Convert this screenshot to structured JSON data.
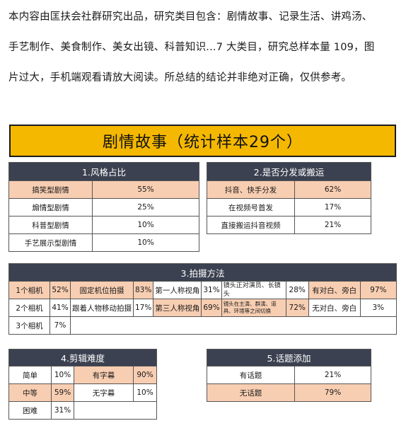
{
  "intro": {
    "line1": "本内容由匡扶会社群研究出品，研究类目包含：剧情故事、记录生活、讲鸡汤、",
    "line2": "手艺制作、美食制作、美女出镜、科普知识...7 大类目，研究总样本量 109，图",
    "line3": "片过大，手机端观看请放大阅读。所总结的结论并非绝对正确，仅供参考。"
  },
  "banner": {
    "title": "剧情故事（统计样本29个）"
  },
  "t1": {
    "header": "1.风格占比",
    "rows": [
      {
        "label": "搞笑型剧情",
        "value": "55%"
      },
      {
        "label": "煽情型剧情",
        "value": "25%"
      },
      {
        "label": "科普型剧情",
        "value": "10%"
      },
      {
        "label": "手艺展示型剧情",
        "value": "10%"
      }
    ]
  },
  "t2": {
    "header": "2.是否分发或搬运",
    "rows": [
      {
        "label": "抖音、快手分发",
        "value": "62%"
      },
      {
        "label": "在视频号首发",
        "value": "17%"
      },
      {
        "label": "直接搬运抖音视频",
        "value": "21%"
      }
    ]
  },
  "t3": {
    "header": "3.拍摄方法",
    "row1": [
      "1个相机",
      "52%",
      "固定机位拍摄",
      "83%",
      "第一人称视角",
      "31%",
      "镜头正对演员、长镜头",
      "28%",
      "有对白、旁白",
      "97%"
    ],
    "row2": [
      "2个相机",
      "41%",
      "跟着人物移动拍摄",
      "17%",
      "第三人称视角",
      "69%",
      "镜头在主演、群演、道具、环境等之间切换",
      "72%",
      "无对白、旁白",
      "3%"
    ],
    "row3": [
      "3个相机",
      "7%"
    ]
  },
  "t4": {
    "header": "4.剪辑难度",
    "rows": [
      [
        "简单",
        "10%",
        "有字幕",
        "90%"
      ],
      [
        "中等",
        "59%",
        "无字幕",
        "10%"
      ],
      [
        "困难",
        "31%"
      ]
    ]
  },
  "t5": {
    "header": "5.话题添加",
    "rows": [
      {
        "label": "有话题",
        "value": "21%"
      },
      {
        "label": "无话题",
        "value": "79%"
      }
    ]
  },
  "colors": {
    "banner": "#f5b800",
    "header": "#3b4150",
    "highlight": "#f8ceb2"
  }
}
